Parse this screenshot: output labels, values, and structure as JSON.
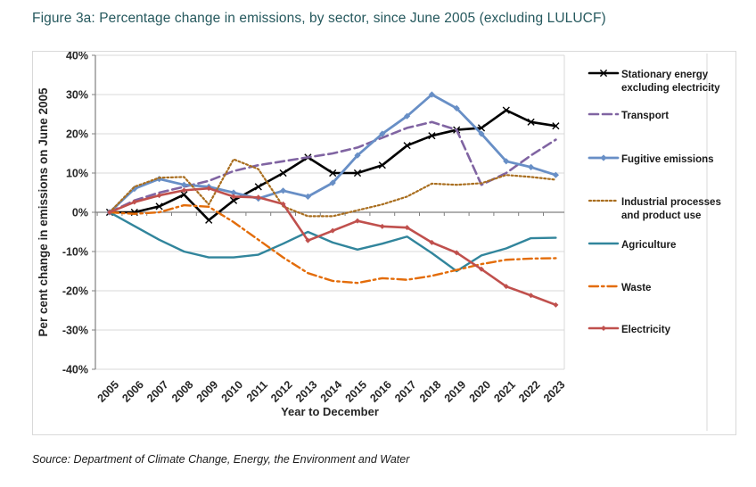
{
  "page": {
    "title": "Figure 3a: Percentage change in emissions, by sector, since June 2005 (excluding LULUCF)",
    "source": "Source: Department of Climate Change, Energy, the Environment and Water"
  },
  "chart_data": {
    "type": "line",
    "title": "Figure 3a: Percentage change in emissions, by sector, since June 2005 (excluding LULUCF)",
    "xlabel": "Year to December",
    "ylabel": "Per cent change in emissions on June 2005",
    "ylim": [
      -40,
      40
    ],
    "ytick_step": 10,
    "ytick_suffix": "%",
    "grid": true,
    "legend_position": "right",
    "categories": [
      2005,
      2006,
      2007,
      2008,
      2009,
      2010,
      2011,
      2012,
      2013,
      2014,
      2015,
      2016,
      2017,
      2018,
      2019,
      2020,
      2021,
      2022,
      2023
    ],
    "series": [
      {
        "name": "Stationary energy excluding electricity",
        "legend_lines": [
          "Stationary energy",
          "excluding electricity"
        ],
        "color": "#000000",
        "dash": "solid",
        "marker": "x",
        "width": 2.6,
        "values": [
          0,
          0,
          1.5,
          4.5,
          -2,
          3,
          6.5,
          10,
          14,
          10,
          10,
          12,
          17,
          19.5,
          21,
          21.5,
          26,
          23,
          22
        ]
      },
      {
        "name": "Transport",
        "legend_lines": [
          "Transport"
        ],
        "color": "#8064A2",
        "dash": "dashed",
        "marker": "none",
        "width": 2.6,
        "values": [
          0,
          3,
          5,
          6.5,
          8,
          10.5,
          12,
          13,
          14,
          15,
          16.5,
          19,
          21.5,
          23,
          21,
          7,
          10,
          14.5,
          18.5
        ]
      },
      {
        "name": "Fugitive emissions",
        "legend_lines": [
          "Fugitive emissions"
        ],
        "color": "#688FC6",
        "dash": "solid",
        "marker": "diamond",
        "width": 2.8,
        "values": [
          0,
          6,
          8.5,
          7,
          6.5,
          5,
          3.5,
          5.5,
          4,
          7.5,
          14.5,
          20,
          24.5,
          30,
          26.5,
          20,
          13,
          11.5,
          9.5
        ]
      },
      {
        "name": "Industrial processes and product use",
        "legend_lines": [
          "Industrial processes",
          "and product use"
        ],
        "color": "#A96E1F",
        "dash": "dotted",
        "marker": "none",
        "width": 2.2,
        "values": [
          0,
          6.5,
          8.8,
          9,
          2,
          13.5,
          11,
          1.5,
          -1,
          -1,
          0.5,
          2,
          4,
          7.3,
          7,
          7.4,
          9.5,
          9,
          8.3
        ]
      },
      {
        "name": "Agriculture",
        "legend_lines": [
          "Agriculture"
        ],
        "color": "#31859C",
        "dash": "solid",
        "marker": "none",
        "width": 2.4,
        "values": [
          0,
          -3.5,
          -7,
          -10,
          -11.5,
          -11.5,
          -10.8,
          -8,
          -5,
          -7.7,
          -9.5,
          -8,
          -6.2,
          -10.4,
          -15,
          -11,
          -9.2,
          -6.6,
          -6.5
        ]
      },
      {
        "name": "Waste",
        "legend_lines": [
          "Waste"
        ],
        "color": "#E36C09",
        "dash": "dashdot",
        "marker": "none",
        "width": 2.4,
        "values": [
          0,
          -0.4,
          0,
          1.8,
          1.4,
          -2.5,
          -7,
          -11.5,
          -15.5,
          -17.5,
          -18,
          -16.8,
          -17.2,
          -16.2,
          -14.7,
          -13.2,
          -12.1,
          -11.8,
          -11.7
        ]
      },
      {
        "name": "Electricity",
        "legend_lines": [
          "Electricity"
        ],
        "color": "#C0504D",
        "dash": "solid",
        "marker": "diamond",
        "width": 2.6,
        "values": [
          0,
          2.6,
          4.3,
          5.6,
          6.1,
          4,
          3.8,
          2.1,
          -7.2,
          -4.7,
          -2.2,
          -3.6,
          -3.9,
          -7.7,
          -10.3,
          -14.5,
          -18.9,
          -21.2,
          -23.6
        ]
      }
    ],
    "colors": {
      "grid": "#D9D9D9",
      "axis": "#808080",
      "text": "#262626",
      "title": "#26595E"
    }
  }
}
